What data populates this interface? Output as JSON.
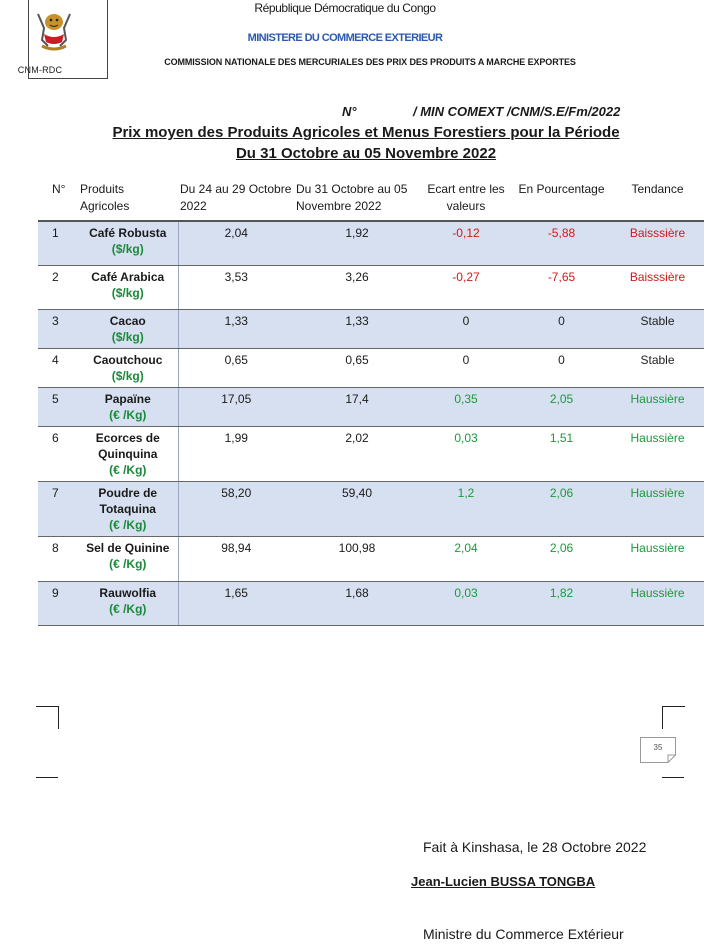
{
  "header": {
    "republic": "République Démocratique du Congo",
    "ministry": "MINISTERE DU COMMERCE EXTERIEUR",
    "commission": "COMMISSION NATIONALE DES MERCURIALES DES PRIX DES PRODUITS A MARCHE EXPORTES",
    "box_label": "CNM-RDC",
    "emblem": "drc-coat-of-arms-emblem"
  },
  "reference": {
    "n": "N°",
    "code": "/ MIN COMEXT /CNM/S.E/Fm/2022"
  },
  "title": {
    "line1": "Prix moyen des Produits Agricoles et Menus Forestiers pour la Période",
    "line2": "Du 31 Octobre au 05 Novembre 2022"
  },
  "table": {
    "headers": {
      "num": "N°",
      "product": "Produits Agricoles",
      "prev": "Du 24 au 29 Octobre  2022",
      "curr": "Du 31 Octobre au 05 Novembre  2022",
      "diff": "Ecart entre les valeurs",
      "percent": "En  Pourcentage",
      "trend": "Tendance"
    },
    "rows": [
      {
        "n": "1",
        "product": "Café Robusta",
        "unit": "($/kg)",
        "prev": "2,04",
        "curr": "1,92",
        "diff": "-0,12",
        "pct": "-5,88",
        "trend": "Baisssière"
      },
      {
        "n": "2",
        "product": "Café Arabica",
        "unit": "($/kg)",
        "prev": "3,53",
        "curr": "3,26",
        "diff": "-0,27",
        "pct": "-7,65",
        "trend": "Baisssière"
      },
      {
        "n": "3",
        "product": "Cacao",
        "unit": "($/kg)",
        "prev": "1,33",
        "curr": "1,33",
        "diff": "0",
        "pct": "0",
        "trend": "Stable"
      },
      {
        "n": "4",
        "product": "Caoutchouc",
        "unit": "($/kg)",
        "prev": "0,65",
        "curr": "0,65",
        "diff": "0",
        "pct": "0",
        "trend": "Stable"
      },
      {
        "n": "5",
        "product": "Papaïne",
        "unit": "(€ /Kg)",
        "prev": "17,05",
        "curr": "17,4",
        "diff": "0,35",
        "pct": "2,05",
        "trend": "Haussière"
      },
      {
        "n": "6",
        "product": "Ecorces de Quinquina",
        "unit": "(€ /Kg)",
        "prev": "1,99",
        "curr": "2,02",
        "diff": "0,03",
        "pct": "1,51",
        "trend": "Haussière"
      },
      {
        "n": "7",
        "product": "Poudre de Totaquina",
        "unit": "(€ /Kg)",
        "prev": "58,20",
        "curr": "59,40",
        "diff": "1,2",
        "pct": "2,06",
        "trend": "Haussière"
      },
      {
        "n": "8",
        "product": "Sel de Quinine",
        "unit": "(€ /Kg)",
        "prev": "98,94",
        "curr": "100,98",
        "diff": "2,04",
        "pct": "2,06",
        "trend": "Haussière"
      },
      {
        "n": "9",
        "product": "Rauwolfia",
        "unit": "(€ /Kg)",
        "prev": "1,65",
        "curr": "1,68",
        "diff": "0,03",
        "pct": "1,82",
        "trend": "Haussière"
      }
    ]
  },
  "page_number": "35",
  "footer": {
    "place_date": "Fait à Kinshasa, le 28 Octobre  2022",
    "name": "Jean-Lucien BUSSA TONGBA",
    "role": "Ministre du Commerce Extérieur"
  },
  "colors": {
    "ministry_blue": "#2b59b0",
    "row_shade": "#d6e0f0",
    "decrease_red": "#d11a1a",
    "increase_green": "#1a9a3a",
    "unit_green": "#1a8a3a"
  }
}
